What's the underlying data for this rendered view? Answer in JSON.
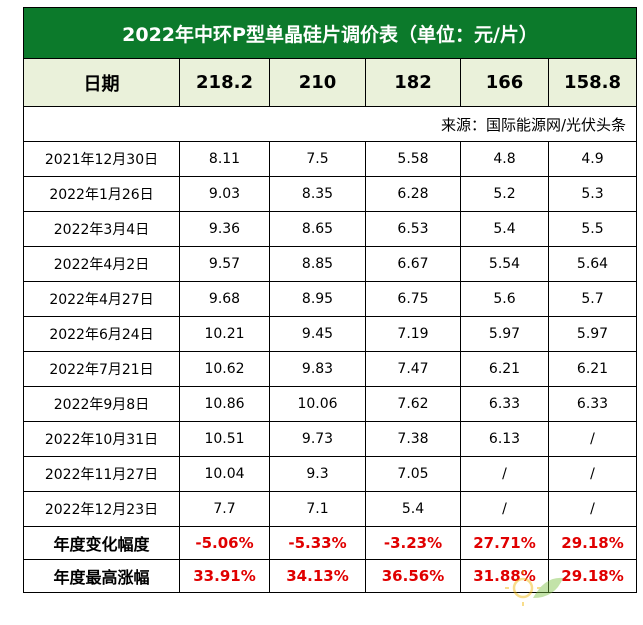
{
  "title": "2022年中环P型单晶硅片调价表（单位：元/片）",
  "header": {
    "date_label": "日期",
    "sizes": [
      "218.2",
      "210",
      "182",
      "166",
      "158.8"
    ]
  },
  "source": "来源：国际能源网/光伏头条",
  "rows": [
    {
      "date": "2021年12月30日",
      "values": [
        "8.11",
        "7.5",
        "5.58",
        "4.8",
        "4.9"
      ]
    },
    {
      "date": "2022年1月26日",
      "values": [
        "9.03",
        "8.35",
        "6.28",
        "5.2",
        "5.3"
      ]
    },
    {
      "date": "2022年3月4日",
      "values": [
        "9.36",
        "8.65",
        "6.53",
        "5.4",
        "5.5"
      ]
    },
    {
      "date": "2022年4月2日",
      "values": [
        "9.57",
        "8.85",
        "6.67",
        "5.54",
        "5.64"
      ]
    },
    {
      "date": "2022年4月27日",
      "values": [
        "9.68",
        "8.95",
        "6.75",
        "5.6",
        "5.7"
      ]
    },
    {
      "date": "2022年6月24日",
      "values": [
        "10.21",
        "9.45",
        "7.19",
        "5.97",
        "5.97"
      ]
    },
    {
      "date": "2022年7月21日",
      "values": [
        "10.62",
        "9.83",
        "7.47",
        "6.21",
        "6.21"
      ]
    },
    {
      "date": "2022年9月8日",
      "values": [
        "10.86",
        "10.06",
        "7.62",
        "6.33",
        "6.33"
      ]
    },
    {
      "date": "2022年10月31日",
      "values": [
        "10.51",
        "9.73",
        "7.38",
        "6.13",
        "/"
      ]
    },
    {
      "date": "2022年11月27日",
      "values": [
        "10.04",
        "9.3",
        "7.05",
        "/",
        "/"
      ]
    },
    {
      "date": "2022年12月23日",
      "values": [
        "7.7",
        "7.1",
        "5.4",
        "/",
        "/"
      ]
    }
  ],
  "summary": [
    {
      "label": "年度变化幅度",
      "values": [
        "-5.06%",
        "-5.33%",
        "-3.23%",
        "27.71%",
        "29.18%"
      ]
    },
    {
      "label": "年度最高涨幅",
      "values": [
        "33.91%",
        "34.13%",
        "36.56%",
        "31.88%",
        "29.18%"
      ]
    }
  ],
  "colors": {
    "title_bg": "#0c7a2b",
    "header_bg": "#eaf1da",
    "summary_value": "#e00000"
  },
  "watermark_icon": "sun-leaf-logo-icon"
}
